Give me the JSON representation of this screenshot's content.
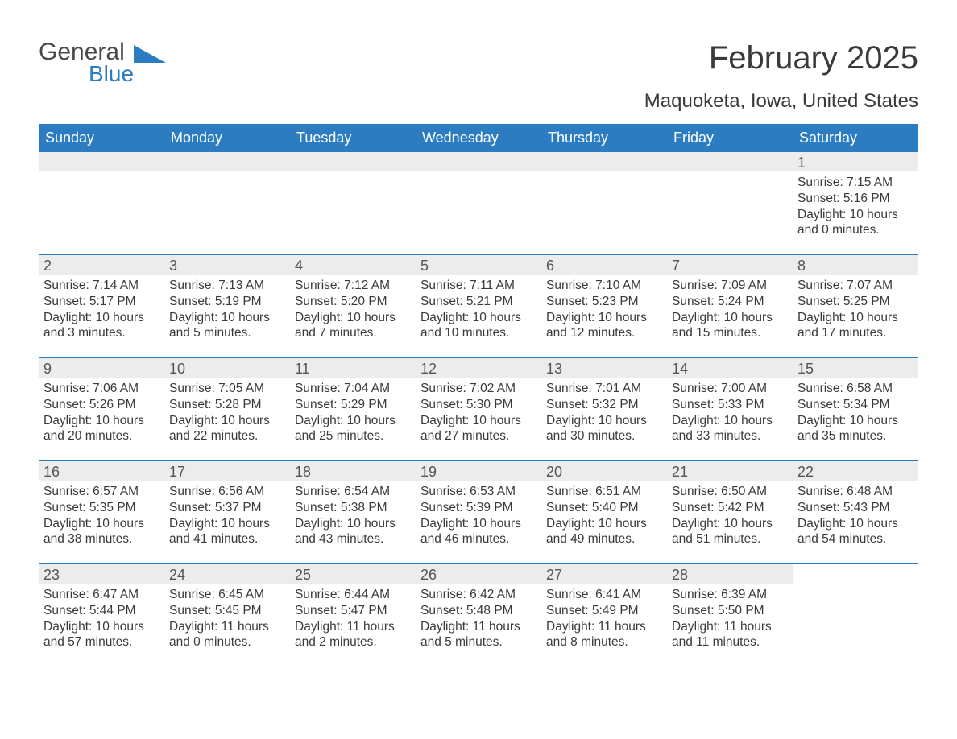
{
  "logo": {
    "word1": "General",
    "word2": "Blue",
    "tri_color": "#2b7cc0"
  },
  "title": "February 2025",
  "subtitle": "Maquoketa, Iowa, United States",
  "header_bg": "#2b7cc0",
  "header_fg": "#ffffff",
  "daynum_bg": "#ececec",
  "divider_color": "#2b7cc0",
  "text_color": "#3a3a3a",
  "weekdays": [
    "Sunday",
    "Monday",
    "Tuesday",
    "Wednesday",
    "Thursday",
    "Friday",
    "Saturday"
  ],
  "weeks": [
    [
      null,
      null,
      null,
      null,
      null,
      null,
      {
        "n": "1",
        "sr": "Sunrise: 7:15 AM",
        "ss": "Sunset: 5:16 PM",
        "dl1": "Daylight: 10 hours",
        "dl2": "and 0 minutes."
      }
    ],
    [
      {
        "n": "2",
        "sr": "Sunrise: 7:14 AM",
        "ss": "Sunset: 5:17 PM",
        "dl1": "Daylight: 10 hours",
        "dl2": "and 3 minutes."
      },
      {
        "n": "3",
        "sr": "Sunrise: 7:13 AM",
        "ss": "Sunset: 5:19 PM",
        "dl1": "Daylight: 10 hours",
        "dl2": "and 5 minutes."
      },
      {
        "n": "4",
        "sr": "Sunrise: 7:12 AM",
        "ss": "Sunset: 5:20 PM",
        "dl1": "Daylight: 10 hours",
        "dl2": "and 7 minutes."
      },
      {
        "n": "5",
        "sr": "Sunrise: 7:11 AM",
        "ss": "Sunset: 5:21 PM",
        "dl1": "Daylight: 10 hours",
        "dl2": "and 10 minutes."
      },
      {
        "n": "6",
        "sr": "Sunrise: 7:10 AM",
        "ss": "Sunset: 5:23 PM",
        "dl1": "Daylight: 10 hours",
        "dl2": "and 12 minutes."
      },
      {
        "n": "7",
        "sr": "Sunrise: 7:09 AM",
        "ss": "Sunset: 5:24 PM",
        "dl1": "Daylight: 10 hours",
        "dl2": "and 15 minutes."
      },
      {
        "n": "8",
        "sr": "Sunrise: 7:07 AM",
        "ss": "Sunset: 5:25 PM",
        "dl1": "Daylight: 10 hours",
        "dl2": "and 17 minutes."
      }
    ],
    [
      {
        "n": "9",
        "sr": "Sunrise: 7:06 AM",
        "ss": "Sunset: 5:26 PM",
        "dl1": "Daylight: 10 hours",
        "dl2": "and 20 minutes."
      },
      {
        "n": "10",
        "sr": "Sunrise: 7:05 AM",
        "ss": "Sunset: 5:28 PM",
        "dl1": "Daylight: 10 hours",
        "dl2": "and 22 minutes."
      },
      {
        "n": "11",
        "sr": "Sunrise: 7:04 AM",
        "ss": "Sunset: 5:29 PM",
        "dl1": "Daylight: 10 hours",
        "dl2": "and 25 minutes."
      },
      {
        "n": "12",
        "sr": "Sunrise: 7:02 AM",
        "ss": "Sunset: 5:30 PM",
        "dl1": "Daylight: 10 hours",
        "dl2": "and 27 minutes."
      },
      {
        "n": "13",
        "sr": "Sunrise: 7:01 AM",
        "ss": "Sunset: 5:32 PM",
        "dl1": "Daylight: 10 hours",
        "dl2": "and 30 minutes."
      },
      {
        "n": "14",
        "sr": "Sunrise: 7:00 AM",
        "ss": "Sunset: 5:33 PM",
        "dl1": "Daylight: 10 hours",
        "dl2": "and 33 minutes."
      },
      {
        "n": "15",
        "sr": "Sunrise: 6:58 AM",
        "ss": "Sunset: 5:34 PM",
        "dl1": "Daylight: 10 hours",
        "dl2": "and 35 minutes."
      }
    ],
    [
      {
        "n": "16",
        "sr": "Sunrise: 6:57 AM",
        "ss": "Sunset: 5:35 PM",
        "dl1": "Daylight: 10 hours",
        "dl2": "and 38 minutes."
      },
      {
        "n": "17",
        "sr": "Sunrise: 6:56 AM",
        "ss": "Sunset: 5:37 PM",
        "dl1": "Daylight: 10 hours",
        "dl2": "and 41 minutes."
      },
      {
        "n": "18",
        "sr": "Sunrise: 6:54 AM",
        "ss": "Sunset: 5:38 PM",
        "dl1": "Daylight: 10 hours",
        "dl2": "and 43 minutes."
      },
      {
        "n": "19",
        "sr": "Sunrise: 6:53 AM",
        "ss": "Sunset: 5:39 PM",
        "dl1": "Daylight: 10 hours",
        "dl2": "and 46 minutes."
      },
      {
        "n": "20",
        "sr": "Sunrise: 6:51 AM",
        "ss": "Sunset: 5:40 PM",
        "dl1": "Daylight: 10 hours",
        "dl2": "and 49 minutes."
      },
      {
        "n": "21",
        "sr": "Sunrise: 6:50 AM",
        "ss": "Sunset: 5:42 PM",
        "dl1": "Daylight: 10 hours",
        "dl2": "and 51 minutes."
      },
      {
        "n": "22",
        "sr": "Sunrise: 6:48 AM",
        "ss": "Sunset: 5:43 PM",
        "dl1": "Daylight: 10 hours",
        "dl2": "and 54 minutes."
      }
    ],
    [
      {
        "n": "23",
        "sr": "Sunrise: 6:47 AM",
        "ss": "Sunset: 5:44 PM",
        "dl1": "Daylight: 10 hours",
        "dl2": "and 57 minutes."
      },
      {
        "n": "24",
        "sr": "Sunrise: 6:45 AM",
        "ss": "Sunset: 5:45 PM",
        "dl1": "Daylight: 11 hours",
        "dl2": "and 0 minutes."
      },
      {
        "n": "25",
        "sr": "Sunrise: 6:44 AM",
        "ss": "Sunset: 5:47 PM",
        "dl1": "Daylight: 11 hours",
        "dl2": "and 2 minutes."
      },
      {
        "n": "26",
        "sr": "Sunrise: 6:42 AM",
        "ss": "Sunset: 5:48 PM",
        "dl1": "Daylight: 11 hours",
        "dl2": "and 5 minutes."
      },
      {
        "n": "27",
        "sr": "Sunrise: 6:41 AM",
        "ss": "Sunset: 5:49 PM",
        "dl1": "Daylight: 11 hours",
        "dl2": "and 8 minutes."
      },
      {
        "n": "28",
        "sr": "Sunrise: 6:39 AM",
        "ss": "Sunset: 5:50 PM",
        "dl1": "Daylight: 11 hours",
        "dl2": "and 11 minutes."
      },
      null
    ]
  ]
}
